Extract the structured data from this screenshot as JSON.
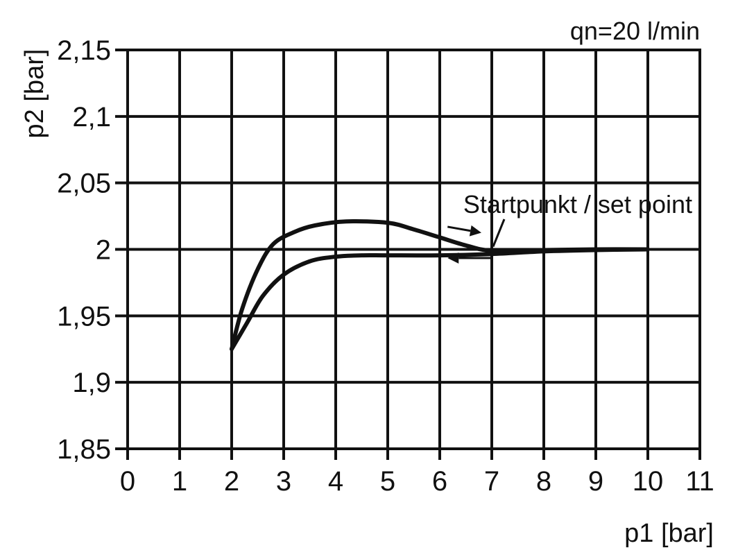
{
  "chart_data": {
    "type": "line",
    "annotation_top_right": "qn=20 l/min",
    "xlabel": "p1 [bar]",
    "ylabel": "p2 [bar]",
    "xlim": [
      0,
      11
    ],
    "ylim": [
      1.85,
      2.15
    ],
    "x_ticks": [
      0,
      1,
      2,
      3,
      4,
      5,
      6,
      7,
      8,
      9,
      10,
      11
    ],
    "x_tick_labels": [
      "0",
      "1",
      "2",
      "3",
      "4",
      "5",
      "6",
      "7",
      "8",
      "9",
      "10",
      "11"
    ],
    "y_ticks": [
      1.85,
      1.9,
      1.95,
      2.0,
      2.05,
      2.1,
      2.15
    ],
    "y_tick_labels": [
      "1,85",
      "1,9",
      "1,95",
      "2",
      "2,05",
      "2,1",
      "2,15"
    ],
    "grid": true,
    "set_point_label": "Startpunkt / set point",
    "set_point": {
      "x": 7,
      "y": 2.0
    },
    "series": [
      {
        "direction": "decreasing p1",
        "points": [
          [
            10,
            2.0
          ],
          [
            9,
            1.9995
          ],
          [
            8,
            1.9985
          ],
          [
            7,
            1.9965
          ],
          [
            6,
            1.9955
          ],
          [
            5,
            1.9955
          ],
          [
            4.5,
            1.9955
          ],
          [
            4,
            1.9945
          ],
          [
            3.5,
            1.991
          ],
          [
            3,
            1.981
          ],
          [
            2.6,
            1.965
          ],
          [
            2.3,
            1.945
          ],
          [
            2,
            1.925
          ]
        ]
      },
      {
        "direction": "increasing p1",
        "points": [
          [
            2,
            1.925
          ],
          [
            2.2,
            1.955
          ],
          [
            2.5,
            1.985
          ],
          [
            2.8,
            2.004
          ],
          [
            3.2,
            2.013
          ],
          [
            3.6,
            2.018
          ],
          [
            4.2,
            2.021
          ],
          [
            5,
            2.02
          ],
          [
            5.5,
            2.015
          ],
          [
            6,
            2.009
          ],
          [
            6.5,
            2.003
          ],
          [
            7,
            1.999
          ],
          [
            8,
            1.9995
          ],
          [
            9,
            2.0
          ],
          [
            10,
            2.0
          ]
        ]
      }
    ],
    "arrows": [
      {
        "meaning": "increasing p1 curve direction",
        "from": [
          6.15,
          2.017
        ],
        "to": [
          6.8,
          2.0125
        ]
      },
      {
        "meaning": "decreasing p1 curve direction",
        "from": [
          7.0,
          1.9935
        ],
        "to": [
          6.15,
          1.9935
        ]
      }
    ]
  }
}
